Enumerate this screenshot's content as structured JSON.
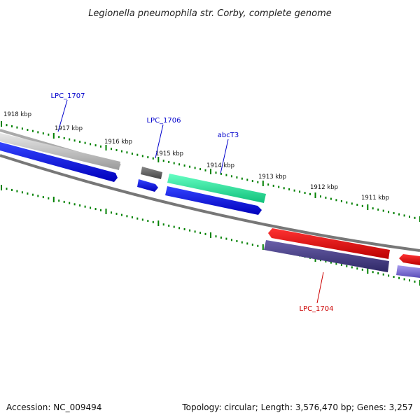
{
  "title": "Legionella pneumophila str. Corby, complete genome",
  "footer": {
    "accession": "Accession: NC_009494",
    "info": "Topology: circular; Length: 3,576,470 bp; Genes: 3,257"
  },
  "ticks": [
    {
      "label": "1918 kbp"
    },
    {
      "label": "1917 kbp"
    },
    {
      "label": "1916 kbp"
    },
    {
      "label": "1915 kbp"
    },
    {
      "label": "1914 kbp"
    },
    {
      "label": "1913 kbp"
    },
    {
      "label": "1912 kbp"
    },
    {
      "label": "1911 kbp"
    }
  ],
  "gene_labels": [
    {
      "name": "LPC_1707",
      "color": "#0000cc"
    },
    {
      "name": "LPC_1706",
      "color": "#0000cc"
    },
    {
      "name": "abcT3",
      "color": "#0000cc"
    },
    {
      "name": "LPC_1704",
      "color": "#cc0000"
    }
  ],
  "colors": {
    "forward_gene": "#0000ee",
    "forward_cds_grey": "#cccccc",
    "forward_cds_dark": "#666666",
    "forward_cds_green": "#22ee99",
    "reverse_gene": "#ee0000",
    "reverse_cds": "#4a3f88",
    "reverse_cds_light": "#7766cc",
    "backbone": "#888888",
    "tick": "#008000"
  }
}
